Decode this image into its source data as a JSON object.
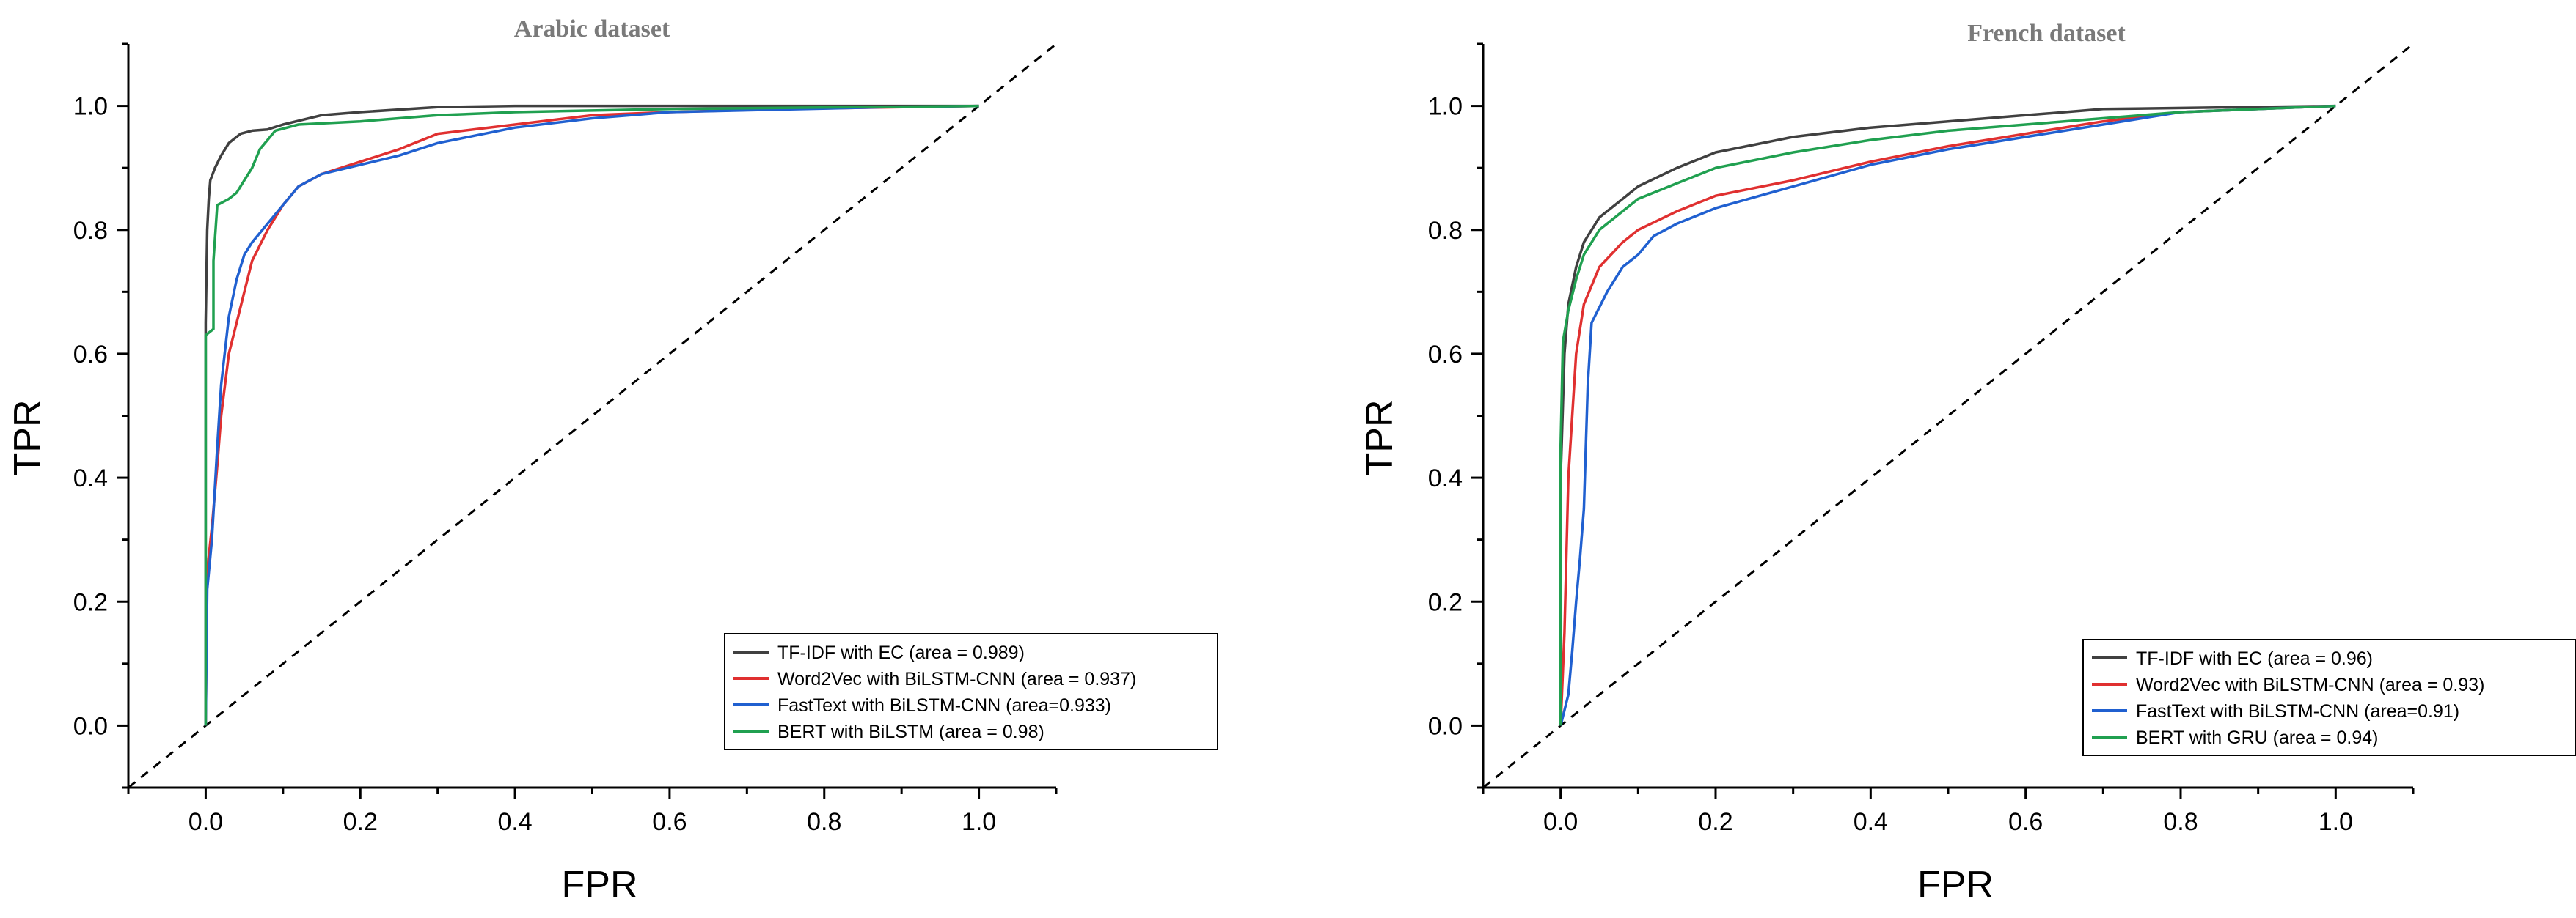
{
  "chart_data": [
    {
      "type": "line",
      "title": "Arabic dataset",
      "xlabel": "FPR",
      "ylabel": "TPR",
      "xlim": [
        -0.1,
        1.1
      ],
      "ylim": [
        -0.1,
        1.1
      ],
      "xticks": [
        "0.0",
        "0.2",
        "0.4",
        "0.6",
        "0.8",
        "1.0"
      ],
      "yticks": [
        "0.0",
        "0.2",
        "0.4",
        "0.6",
        "0.8",
        "1.0"
      ],
      "legend_position": "bottom-right",
      "diagonal": true,
      "series": [
        {
          "name": "TF-IDF with EC (area = 0.989)",
          "color": "#404040",
          "points": [
            [
              0,
              0
            ],
            [
              0,
              0.65
            ],
            [
              0.002,
              0.8
            ],
            [
              0.004,
              0.85
            ],
            [
              0.006,
              0.88
            ],
            [
              0.012,
              0.9
            ],
            [
              0.02,
              0.92
            ],
            [
              0.03,
              0.94
            ],
            [
              0.045,
              0.955
            ],
            [
              0.06,
              0.96
            ],
            [
              0.08,
              0.962
            ],
            [
              0.1,
              0.97
            ],
            [
              0.15,
              0.985
            ],
            [
              0.2,
              0.99
            ],
            [
              0.3,
              0.998
            ],
            [
              0.4,
              1.0
            ],
            [
              1.0,
              1.0
            ]
          ]
        },
        {
          "name": "Word2Vec with BiLSTM-CNN (area = 0.937)",
          "color": "#e03030",
          "points": [
            [
              0,
              0
            ],
            [
              0.002,
              0.25
            ],
            [
              0.008,
              0.32
            ],
            [
              0.015,
              0.42
            ],
            [
              0.02,
              0.5
            ],
            [
              0.03,
              0.6
            ],
            [
              0.04,
              0.65
            ],
            [
              0.05,
              0.7
            ],
            [
              0.06,
              0.75
            ],
            [
              0.08,
              0.8
            ],
            [
              0.1,
              0.84
            ],
            [
              0.12,
              0.87
            ],
            [
              0.15,
              0.89
            ],
            [
              0.2,
              0.91
            ],
            [
              0.25,
              0.93
            ],
            [
              0.3,
              0.955
            ],
            [
              0.4,
              0.97
            ],
            [
              0.5,
              0.985
            ],
            [
              0.6,
              0.99
            ],
            [
              0.75,
              0.995
            ],
            [
              1.0,
              1.0
            ]
          ]
        },
        {
          "name": "FastText with BiLSTM-CNN (area=0.933)",
          "color": "#2060d0",
          "points": [
            [
              0,
              0
            ],
            [
              0.002,
              0.22
            ],
            [
              0.008,
              0.3
            ],
            [
              0.015,
              0.45
            ],
            [
              0.02,
              0.55
            ],
            [
              0.03,
              0.66
            ],
            [
              0.04,
              0.72
            ],
            [
              0.05,
              0.76
            ],
            [
              0.06,
              0.78
            ],
            [
              0.08,
              0.81
            ],
            [
              0.1,
              0.84
            ],
            [
              0.12,
              0.87
            ],
            [
              0.15,
              0.89
            ],
            [
              0.2,
              0.905
            ],
            [
              0.25,
              0.92
            ],
            [
              0.3,
              0.94
            ],
            [
              0.4,
              0.965
            ],
            [
              0.5,
              0.98
            ],
            [
              0.6,
              0.99
            ],
            [
              0.88,
              0.998
            ],
            [
              1.0,
              1.0
            ]
          ]
        },
        {
          "name": "BERT with BiLSTM (area = 0.98)",
          "color": "#20a050",
          "points": [
            [
              0,
              0
            ],
            [
              0,
              0.63
            ],
            [
              0.01,
              0.64
            ],
            [
              0.01,
              0.75
            ],
            [
              0.015,
              0.84
            ],
            [
              0.03,
              0.85
            ],
            [
              0.04,
              0.86
            ],
            [
              0.05,
              0.88
            ],
            [
              0.06,
              0.9
            ],
            [
              0.07,
              0.93
            ],
            [
              0.09,
              0.96
            ],
            [
              0.12,
              0.97
            ],
            [
              0.2,
              0.975
            ],
            [
              0.3,
              0.985
            ],
            [
              0.4,
              0.99
            ],
            [
              0.6,
              0.995
            ],
            [
              1.0,
              1.0
            ]
          ]
        }
      ]
    },
    {
      "type": "line",
      "title": "French dataset",
      "xlabel": "FPR",
      "ylabel": "TPR",
      "xlim": [
        -0.1,
        1.1
      ],
      "ylim": [
        -0.1,
        1.1
      ],
      "xticks": [
        "0.0",
        "0.2",
        "0.4",
        "0.6",
        "0.8",
        "1.0"
      ],
      "yticks": [
        "0.0",
        "0.2",
        "0.4",
        "0.6",
        "0.8",
        "1.0"
      ],
      "legend_position": "bottom-right",
      "diagonal": true,
      "series": [
        {
          "name": "TF-IDF with EC (area = 0.96)",
          "color": "#404040",
          "points": [
            [
              0,
              0
            ],
            [
              0,
              0.4
            ],
            [
              0.005,
              0.6
            ],
            [
              0.01,
              0.68
            ],
            [
              0.02,
              0.74
            ],
            [
              0.03,
              0.78
            ],
            [
              0.05,
              0.82
            ],
            [
              0.08,
              0.85
            ],
            [
              0.1,
              0.87
            ],
            [
              0.15,
              0.9
            ],
            [
              0.2,
              0.925
            ],
            [
              0.3,
              0.95
            ],
            [
              0.4,
              0.965
            ],
            [
              0.5,
              0.975
            ],
            [
              0.6,
              0.985
            ],
            [
              0.7,
              0.995
            ],
            [
              1.0,
              1.0
            ]
          ]
        },
        {
          "name": "Word2Vec with BiLSTM-CNN (area = 0.93)",
          "color": "#e03030",
          "points": [
            [
              0,
              0
            ],
            [
              0.005,
              0.15
            ],
            [
              0.01,
              0.4
            ],
            [
              0.015,
              0.5
            ],
            [
              0.02,
              0.6
            ],
            [
              0.03,
              0.68
            ],
            [
              0.05,
              0.74
            ],
            [
              0.08,
              0.78
            ],
            [
              0.1,
              0.8
            ],
            [
              0.15,
              0.83
            ],
            [
              0.2,
              0.855
            ],
            [
              0.3,
              0.88
            ],
            [
              0.4,
              0.91
            ],
            [
              0.5,
              0.935
            ],
            [
              0.6,
              0.955
            ],
            [
              0.7,
              0.975
            ],
            [
              0.8,
              0.99
            ],
            [
              1.0,
              1.0
            ]
          ]
        },
        {
          "name": "FastText with BiLSTM-CNN (area=0.91)",
          "color": "#2060d0",
          "points": [
            [
              0,
              0
            ],
            [
              0.01,
              0.05
            ],
            [
              0.015,
              0.12
            ],
            [
              0.02,
              0.2
            ],
            [
              0.025,
              0.27
            ],
            [
              0.03,
              0.35
            ],
            [
              0.035,
              0.55
            ],
            [
              0.04,
              0.65
            ],
            [
              0.06,
              0.7
            ],
            [
              0.08,
              0.74
            ],
            [
              0.1,
              0.76
            ],
            [
              0.12,
              0.79
            ],
            [
              0.15,
              0.81
            ],
            [
              0.2,
              0.835
            ],
            [
              0.3,
              0.87
            ],
            [
              0.4,
              0.905
            ],
            [
              0.5,
              0.93
            ],
            [
              0.6,
              0.95
            ],
            [
              0.7,
              0.97
            ],
            [
              0.8,
              0.99
            ],
            [
              1.0,
              1.0
            ]
          ]
        },
        {
          "name": "BERT with GRU (area = 0.94)",
          "color": "#20a050",
          "points": [
            [
              0,
              0
            ],
            [
              0,
              0.45
            ],
            [
              0.003,
              0.62
            ],
            [
              0.01,
              0.67
            ],
            [
              0.02,
              0.72
            ],
            [
              0.03,
              0.76
            ],
            [
              0.05,
              0.8
            ],
            [
              0.08,
              0.83
            ],
            [
              0.1,
              0.85
            ],
            [
              0.15,
              0.875
            ],
            [
              0.2,
              0.9
            ],
            [
              0.3,
              0.925
            ],
            [
              0.4,
              0.945
            ],
            [
              0.5,
              0.96
            ],
            [
              0.6,
              0.97
            ],
            [
              0.7,
              0.98
            ],
            [
              0.8,
              0.99
            ],
            [
              1.0,
              1.0
            ]
          ]
        }
      ]
    }
  ]
}
